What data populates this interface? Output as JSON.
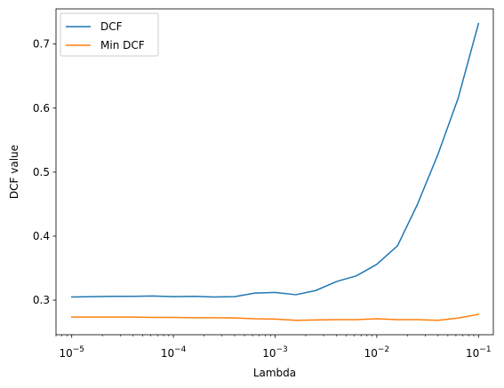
{
  "chart_data": {
    "type": "line",
    "xscale": "log",
    "xlabel": "Lambda",
    "ylabel": "DCF value",
    "xlim": [
      7e-06,
      0.14
    ],
    "ylim": [
      0.246,
      0.755
    ],
    "grid": false,
    "legend_position": "upper-left",
    "x_ticks": [
      {
        "value": 1e-05,
        "mantissa": "10",
        "exp": "−5"
      },
      {
        "value": 0.0001,
        "mantissa": "10",
        "exp": "−4"
      },
      {
        "value": 0.001,
        "mantissa": "10",
        "exp": "−3"
      },
      {
        "value": 0.01,
        "mantissa": "10",
        "exp": "−2"
      },
      {
        "value": 0.1,
        "mantissa": "10",
        "exp": "−1"
      }
    ],
    "y_ticks": [
      0.3,
      0.4,
      0.5,
      0.6,
      0.7
    ],
    "x": [
      1e-05,
      1.6e-05,
      2.5e-05,
      4e-05,
      6.3e-05,
      0.0001,
      0.00016,
      0.00025,
      0.0004,
      0.00063,
      0.001,
      0.0016,
      0.0025,
      0.004,
      0.0063,
      0.01,
      0.016,
      0.025,
      0.04,
      0.063,
      0.1
    ],
    "series": [
      {
        "name": "DCF",
        "color": "#1f77b4",
        "values": [
          0.305,
          0.3055,
          0.306,
          0.306,
          0.3065,
          0.3055,
          0.306,
          0.305,
          0.3055,
          0.311,
          0.312,
          0.3085,
          0.315,
          0.329,
          0.338,
          0.356,
          0.385,
          0.449,
          0.528,
          0.615,
          0.732
        ]
      },
      {
        "name": "Min DCF",
        "color": "#ff7f0e",
        "values": [
          0.2735,
          0.2735,
          0.2735,
          0.2735,
          0.273,
          0.273,
          0.2725,
          0.2725,
          0.2722,
          0.271,
          0.2705,
          0.2685,
          0.269,
          0.2695,
          0.2695,
          0.271,
          0.2695,
          0.2695,
          0.2685,
          0.272,
          0.2778
        ]
      }
    ]
  }
}
